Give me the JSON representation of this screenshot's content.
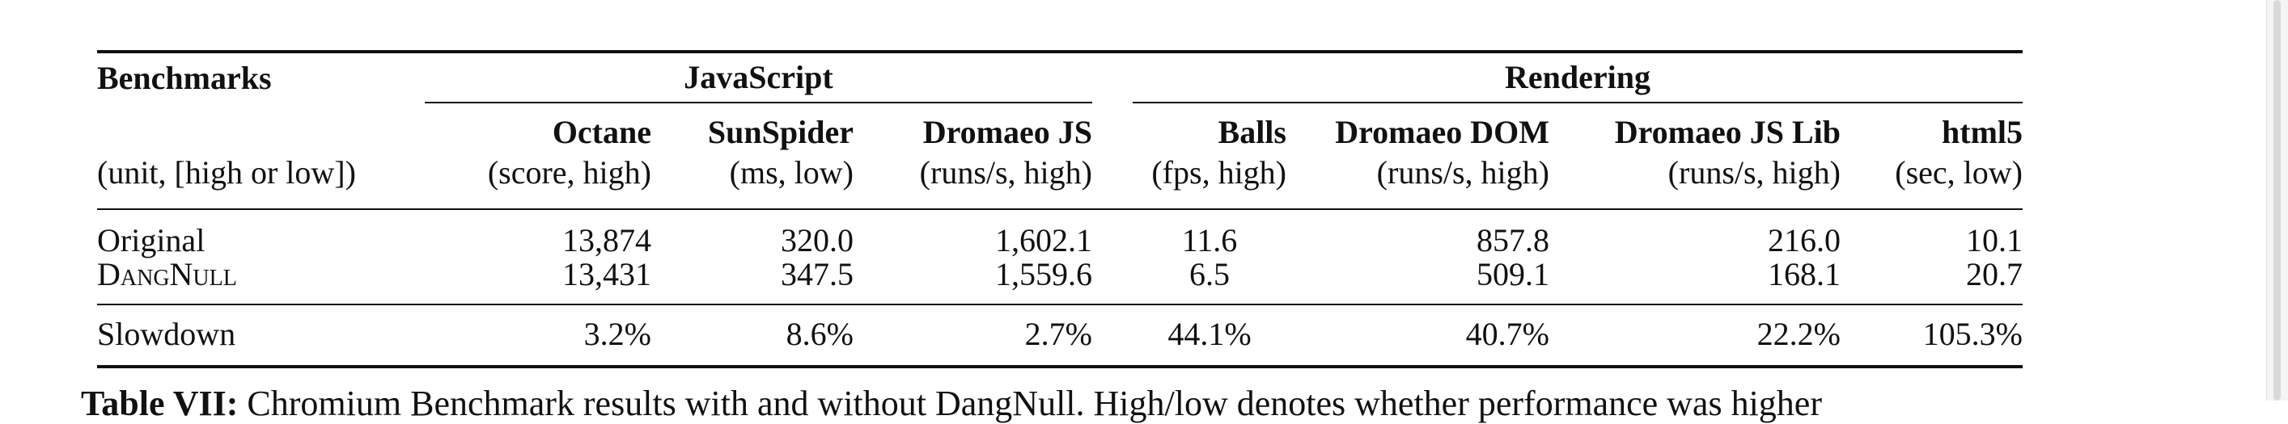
{
  "table": {
    "row_header_title": "Benchmarks",
    "row_header_unit": "(unit, [high or low])",
    "groups": [
      "JavaScript",
      "Rendering"
    ],
    "columns": [
      {
        "name": "Octane",
        "unit": "(score, high)"
      },
      {
        "name": "SunSpider",
        "unit": "(ms, low)"
      },
      {
        "name": "Dromaeo JS",
        "unit": "(runs/s, high)"
      },
      {
        "name": "Balls",
        "unit": "(fps, high)"
      },
      {
        "name": "Dromaeo DOM",
        "unit": "(runs/s, high)"
      },
      {
        "name": "Dromaeo JS Lib",
        "unit": "(runs/s, high)"
      },
      {
        "name": "html5",
        "unit": "(sec, low)"
      }
    ],
    "rows": [
      {
        "label": "Original",
        "values": [
          "13,874",
          "320.0",
          "1,602.1",
          "11.6",
          "857.8",
          "216.0",
          "10.1"
        ]
      },
      {
        "label": "DangNull",
        "values": [
          "13,431",
          "347.5",
          "1,559.6",
          "6.5",
          "509.1",
          "168.1",
          "20.7"
        ]
      }
    ],
    "summary": {
      "label": "Slowdown",
      "values": [
        "3.2%",
        "8.6%",
        "2.7%",
        "44.1%",
        "40.7%",
        "22.2%",
        "105.3%"
      ]
    }
  },
  "caption": {
    "label": "Table VII:",
    "text": "Chromium Benchmark results with and without DangNull. High/low denotes whether performance was higher"
  }
}
